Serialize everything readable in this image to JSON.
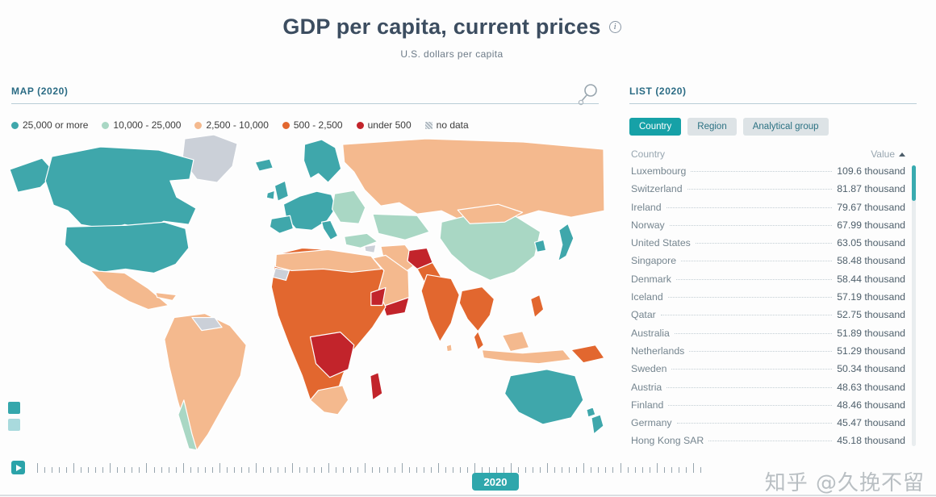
{
  "page": {
    "title": "GDP per capita, current prices",
    "subtitle": "U.S. dollars per capita",
    "info_icon": "i",
    "watermark": "知乎 @久挽不留"
  },
  "colors": {
    "accent_teal": "#16a1a7",
    "title_text": "#3c4d60",
    "panel_header_text": "#2a6b84"
  },
  "map_panel": {
    "header": "MAP (2020)",
    "legend": [
      {
        "key": "b25k",
        "label": "25,000 or more",
        "color": "#3fa7ab"
      },
      {
        "key": "b10k",
        "label": "10,000 - 25,000",
        "color": "#a9d7c4"
      },
      {
        "key": "b2500",
        "label": "2,500 - 10,000",
        "color": "#f4b98e"
      },
      {
        "key": "b500",
        "label": "500 - 2,500",
        "color": "#e2672f"
      },
      {
        "key": "bu500",
        "label": "under 500",
        "color": "#c2242b"
      },
      {
        "key": "nodata",
        "label": "no data",
        "color": "#cbd0d8"
      }
    ],
    "regions": {
      "alaska": "b25k",
      "canada": "b25k",
      "usa": "b25k",
      "greenland": "nodata",
      "mexico": "b2500",
      "caribbean": "b2500",
      "south-america": "b2500",
      "venezuela": "nodata",
      "chile": "b10k",
      "iceland": "b25k",
      "uk": "b25k",
      "ireland": "b25k",
      "scandinavia": "b25k",
      "western-europe": "b25k",
      "iberia": "b25k",
      "italy": "b25k",
      "eastern-europe": "b10k",
      "russia": "b2500",
      "central-asia": "b10k",
      "turkey": "b10k",
      "syria": "nodata",
      "iran": "b2500",
      "afghanistan": "bu500",
      "pakistan": "b500",
      "arabia": "b2500",
      "yemen": "bu500",
      "india": "b500",
      "sri-lanka": "b2500",
      "china": "b10k",
      "mongolia": "b2500",
      "korea": "b25k",
      "japan": "b25k",
      "se-asia": "b500",
      "malay-peninsula": "b500",
      "borneo": "b2500",
      "indonesia": "b2500",
      "philippines": "b500",
      "new-guinea": "b500",
      "africa": "b500",
      "north-africa": "b2500",
      "western-sahara": "nodata",
      "central-africa": "bu500",
      "horn-of-africa": "bu500",
      "madagascar": "bu500",
      "south-africa": "b2500",
      "australia": "b25k",
      "new-zealand": "b25k"
    }
  },
  "list_panel": {
    "header": "LIST (2020)",
    "tabs": [
      {
        "label": "Country",
        "active": true
      },
      {
        "label": "Region",
        "active": false
      },
      {
        "label": "Analytical group",
        "active": false
      }
    ],
    "columns": {
      "country": "Country",
      "value": "Value"
    },
    "rows": [
      {
        "country": "Luxembourg",
        "value": "109.6 thousand"
      },
      {
        "country": "Switzerland",
        "value": "81.87 thousand"
      },
      {
        "country": "Ireland",
        "value": "79.67 thousand"
      },
      {
        "country": "Norway",
        "value": "67.99 thousand"
      },
      {
        "country": "United States",
        "value": "63.05 thousand"
      },
      {
        "country": "Singapore",
        "value": "58.48 thousand"
      },
      {
        "country": "Denmark",
        "value": "58.44 thousand"
      },
      {
        "country": "Iceland",
        "value": "57.19 thousand"
      },
      {
        "country": "Qatar",
        "value": "52.75 thousand"
      },
      {
        "country": "Australia",
        "value": "51.89 thousand"
      },
      {
        "country": "Netherlands",
        "value": "51.29 thousand"
      },
      {
        "country": "Sweden",
        "value": "50.34 thousand"
      },
      {
        "country": "Austria",
        "value": "48.63 thousand"
      },
      {
        "country": "Finland",
        "value": "48.46 thousand"
      },
      {
        "country": "Germany",
        "value": "45.47 thousand"
      },
      {
        "country": "Hong Kong SAR",
        "value": "45.18 thousand"
      }
    ]
  },
  "timeline": {
    "year": "2020",
    "tick_count": 92
  }
}
